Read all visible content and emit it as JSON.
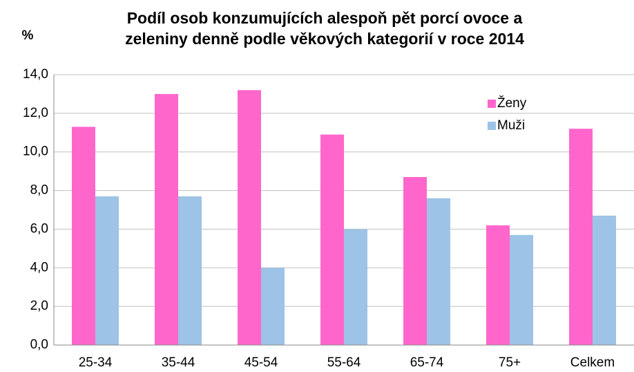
{
  "chart_data": {
    "type": "bar",
    "title": "Podíl osob konzumujících alespoň pět porcí ovoce a zeleniny denně podle věkových kategorií v roce 2014",
    "y_label": "%",
    "categories": [
      "25-34",
      "35-44",
      "45-54",
      "55-64",
      "65-74",
      "75+",
      "Celkem"
    ],
    "series": [
      {
        "name": "Ženy",
        "color": "#ff66cc",
        "values": [
          11.3,
          13.0,
          13.2,
          10.9,
          8.7,
          6.2,
          11.2
        ]
      },
      {
        "name": "Muži",
        "color": "#9dc3e6",
        "values": [
          7.7,
          7.7,
          4.0,
          6.0,
          7.6,
          5.7,
          6.7
        ]
      }
    ],
    "ylim": [
      0,
      14
    ],
    "yticks": [
      {
        "value": 0,
        "label": "0,0"
      },
      {
        "value": 2,
        "label": "2,0"
      },
      {
        "value": 4,
        "label": "4,0"
      },
      {
        "value": 6,
        "label": "6,0"
      },
      {
        "value": 8,
        "label": "8,0"
      },
      {
        "value": 10,
        "label": "10,0"
      },
      {
        "value": 12,
        "label": "12,0"
      },
      {
        "value": 14,
        "label": "14,0"
      }
    ],
    "grid": true,
    "legend": "top-right"
  }
}
